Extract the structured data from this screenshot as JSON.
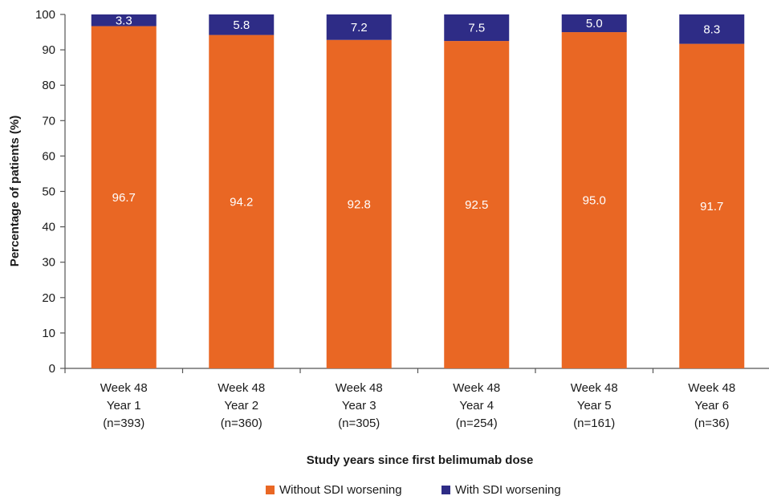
{
  "chart_data": {
    "type": "bar",
    "stacked": true,
    "xlabel": "Study years since first belimumab dose",
    "ylabel": "Percentage of patients (%)",
    "ylim": [
      0,
      100
    ],
    "yticks": [
      "0",
      "10",
      "20",
      "30",
      "40",
      "50",
      "60",
      "70",
      "80",
      "90",
      "100"
    ],
    "grid": false,
    "legend_position": "bottom",
    "categories": [
      [
        "Week 48",
        "Year 1",
        "(n=393)"
      ],
      [
        "Week 48",
        "Year 2",
        "(n=360)"
      ],
      [
        "Week 48",
        "Year 3",
        "(n=305)"
      ],
      [
        "Week 48",
        "Year 4",
        "(n=254)"
      ],
      [
        "Week 48",
        "Year 5",
        "(n=161)"
      ],
      [
        "Week 48",
        "Year 6",
        "(n=36)"
      ]
    ],
    "series": [
      {
        "name": "Without SDI worsening",
        "color": "#e96724",
        "values": [
          96.7,
          94.2,
          92.8,
          92.5,
          95.0,
          91.7
        ],
        "labels": [
          "96.7",
          "94.2",
          "92.8",
          "92.5",
          "95.0",
          "91.7"
        ]
      },
      {
        "name": "With SDI worsening",
        "color": "#2e2c86",
        "values": [
          3.3,
          5.8,
          7.2,
          7.5,
          5.0,
          8.3
        ],
        "labels": [
          "3.3",
          "5.8",
          "7.2",
          "7.5",
          "5.0",
          "8.3"
        ]
      }
    ]
  }
}
